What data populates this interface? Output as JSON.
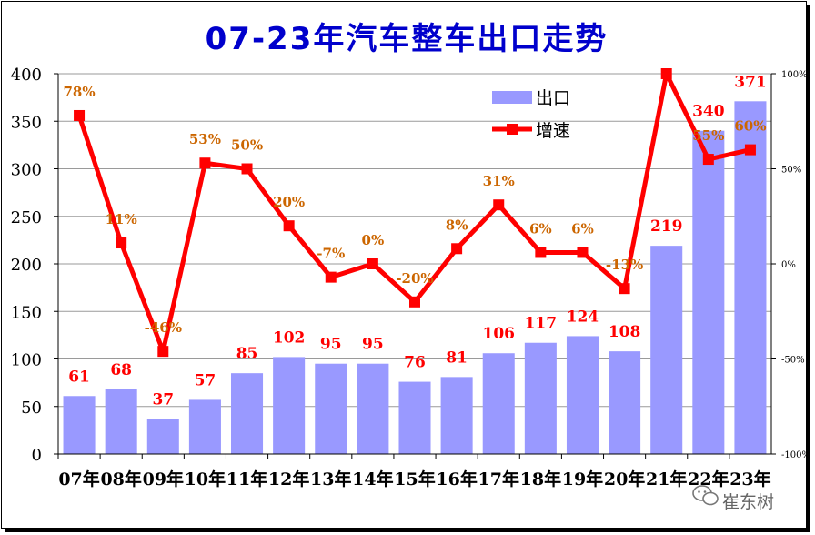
{
  "chart_data": {
    "type": "bar+line",
    "title": "07-23年汽车整车出口走势",
    "categories": [
      "07年",
      "08年",
      "09年",
      "10年",
      "11年",
      "12年",
      "13年",
      "14年",
      "15年",
      "16年",
      "17年",
      "18年",
      "19年",
      "20年",
      "21年",
      "22年",
      "23年"
    ],
    "series": [
      {
        "name": "出口",
        "type": "bar",
        "axis": "left",
        "values": [
          61,
          68,
          37,
          57,
          85,
          102,
          95,
          95,
          76,
          81,
          106,
          117,
          124,
          108,
          219,
          340,
          371
        ],
        "color": "#9999ff",
        "label_color": "#ff0000"
      },
      {
        "name": "增速",
        "type": "line",
        "axis": "right",
        "values": [
          78,
          11,
          -46,
          53,
          50,
          20,
          -7,
          0,
          -20,
          8,
          31,
          6,
          6,
          -13,
          101,
          55,
          60
        ],
        "labels": [
          "78%",
          "11%",
          "-46%",
          "53%",
          "50%",
          "20%",
          "-7%",
          "0%",
          "-20%",
          "8%",
          "31%",
          "6%",
          "6%",
          "-13%",
          "",
          "55%",
          "60%"
        ],
        "color": "#ff0000",
        "label_color": "#cc6600"
      }
    ],
    "y_left": {
      "min": 0,
      "max": 400,
      "ticks": [
        "0",
        "50",
        "100",
        "150",
        "200",
        "250",
        "300",
        "350",
        "400"
      ]
    },
    "y_right": {
      "min": -100,
      "max": 100,
      "ticks": [
        "-100%",
        "-50%",
        "0%",
        "50%",
        "100%"
      ]
    },
    "legend_position": "top-right",
    "grid": true
  },
  "colors": {
    "title": "#0000cc",
    "bar": "#9999ff",
    "line": "#ff0000",
    "bar_label": "#ff0000",
    "line_label": "#cc6600"
  },
  "watermark": {
    "icon": "wechat-icon",
    "text": "崔东树"
  }
}
